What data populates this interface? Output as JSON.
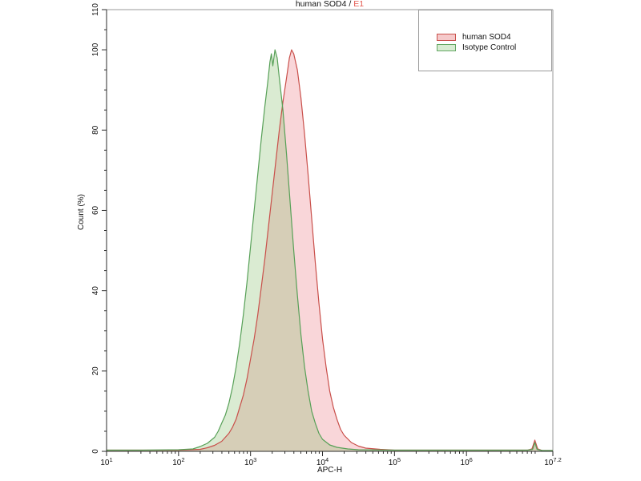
{
  "title": {
    "main": "human SOD4 /",
    "accent": "E1",
    "accent_color": "#e4574e"
  },
  "colors": {
    "axis": "#2b2b2b",
    "plot_border": "#9a9a9a",
    "tick_label": "#111111",
    "red_line": "#c94f4a",
    "red_fill": "rgba(231,105,115,0.27)",
    "green_line": "#57a057",
    "green_fill": "rgba(133,189,105,0.30)"
  },
  "legend": {
    "position": "top-right",
    "entries": [
      {
        "label": "human SOD4",
        "swatch_fill": "#f5c9ca",
        "swatch_border": "#c9504b"
      },
      {
        "label": "Isotype Control",
        "swatch_fill": "#d8ecd2",
        "swatch_border": "#63a763"
      }
    ]
  },
  "chart_data": {
    "type": "area",
    "subtype": "flow-cytometry-histogram",
    "title": "human SOD4 / E1",
    "x_axis": {
      "label": "APC-H",
      "scale": "log10",
      "range": [
        1,
        7.2
      ],
      "ticks": [
        {
          "value": 1,
          "exp": "1"
        },
        {
          "value": 2,
          "exp": "2"
        },
        {
          "value": 3,
          "exp": "3"
        },
        {
          "value": 4,
          "exp": "4"
        },
        {
          "value": 5,
          "exp": "5"
        },
        {
          "value": 6,
          "exp": "6"
        },
        {
          "value": 7.2,
          "exp": "7.2"
        }
      ],
      "tick_base": "10"
    },
    "y_axis": {
      "label": "Count  (%)",
      "range": [
        0,
        110
      ],
      "major_ticks": [
        0,
        20,
        40,
        60,
        80,
        100,
        110
      ],
      "minor_tick_step": 5
    },
    "grid": false,
    "legend_position": "top-right",
    "series": [
      {
        "name": "human SOD4",
        "line_color": "#c94f4a",
        "fill_color": "rgba(231,105,115,0.27)",
        "points": [
          [
            1.0,
            0.3
          ],
          [
            1.5,
            0.3
          ],
          [
            2.0,
            0.3
          ],
          [
            2.3,
            0.5
          ],
          [
            2.4,
            0.9
          ],
          [
            2.5,
            1.5
          ],
          [
            2.6,
            2.5
          ],
          [
            2.7,
            4.5
          ],
          [
            2.75,
            6
          ],
          [
            2.8,
            8
          ],
          [
            2.85,
            11
          ],
          [
            2.9,
            14
          ],
          [
            2.95,
            18
          ],
          [
            3.0,
            23
          ],
          [
            3.05,
            28
          ],
          [
            3.1,
            34
          ],
          [
            3.15,
            41
          ],
          [
            3.2,
            48
          ],
          [
            3.25,
            56
          ],
          [
            3.3,
            64
          ],
          [
            3.35,
            72
          ],
          [
            3.4,
            80
          ],
          [
            3.45,
            87
          ],
          [
            3.5,
            93
          ],
          [
            3.54,
            98
          ],
          [
            3.57,
            100
          ],
          [
            3.6,
            99
          ],
          [
            3.65,
            95
          ],
          [
            3.7,
            88
          ],
          [
            3.75,
            79
          ],
          [
            3.8,
            69
          ],
          [
            3.85,
            58
          ],
          [
            3.9,
            47
          ],
          [
            3.95,
            37
          ],
          [
            4.0,
            28
          ],
          [
            4.05,
            21
          ],
          [
            4.1,
            15
          ],
          [
            4.15,
            11
          ],
          [
            4.2,
            8
          ],
          [
            4.25,
            5.5
          ],
          [
            4.3,
            4
          ],
          [
            4.4,
            2.2
          ],
          [
            4.5,
            1.3
          ],
          [
            4.6,
            0.8
          ],
          [
            4.8,
            0.5
          ],
          [
            5.0,
            0.3
          ],
          [
            5.5,
            0.3
          ],
          [
            6.0,
            0.3
          ],
          [
            6.5,
            0.3
          ],
          [
            6.85,
            0.3
          ],
          [
            6.91,
            0.6
          ],
          [
            6.95,
            2.8
          ],
          [
            6.99,
            0.6
          ],
          [
            7.05,
            0.2
          ],
          [
            7.2,
            0.2
          ]
        ]
      },
      {
        "name": "Isotype Control",
        "line_color": "#57a057",
        "fill_color": "rgba(133,189,105,0.30)",
        "points": [
          [
            1.0,
            0.3
          ],
          [
            1.5,
            0.3
          ],
          [
            2.0,
            0.4
          ],
          [
            2.2,
            0.6
          ],
          [
            2.3,
            1.2
          ],
          [
            2.4,
            2
          ],
          [
            2.5,
            3.5
          ],
          [
            2.55,
            5
          ],
          [
            2.6,
            7
          ],
          [
            2.65,
            9
          ],
          [
            2.7,
            12
          ],
          [
            2.75,
            16
          ],
          [
            2.8,
            21
          ],
          [
            2.85,
            27
          ],
          [
            2.9,
            34
          ],
          [
            2.95,
            42
          ],
          [
            3.0,
            51
          ],
          [
            3.05,
            60
          ],
          [
            3.1,
            69
          ],
          [
            3.15,
            78
          ],
          [
            3.2,
            86
          ],
          [
            3.24,
            92
          ],
          [
            3.27,
            97
          ],
          [
            3.29,
            99
          ],
          [
            3.31,
            96
          ],
          [
            3.34,
            100
          ],
          [
            3.37,
            98
          ],
          [
            3.4,
            93
          ],
          [
            3.45,
            85
          ],
          [
            3.5,
            74
          ],
          [
            3.55,
            62
          ],
          [
            3.6,
            50
          ],
          [
            3.65,
            39
          ],
          [
            3.7,
            29
          ],
          [
            3.75,
            21
          ],
          [
            3.8,
            15
          ],
          [
            3.85,
            10
          ],
          [
            3.9,
            7
          ],
          [
            3.95,
            4.5
          ],
          [
            4.0,
            3
          ],
          [
            4.1,
            1.6
          ],
          [
            4.2,
            1
          ],
          [
            4.35,
            0.6
          ],
          [
            4.5,
            0.4
          ],
          [
            5.0,
            0.3
          ],
          [
            5.5,
            0.3
          ],
          [
            6.0,
            0.3
          ],
          [
            6.5,
            0.3
          ],
          [
            6.85,
            0.3
          ],
          [
            6.92,
            0.5
          ],
          [
            6.95,
            2.2
          ],
          [
            6.98,
            0.5
          ],
          [
            7.05,
            0.2
          ],
          [
            7.2,
            0.2
          ]
        ]
      }
    ]
  }
}
